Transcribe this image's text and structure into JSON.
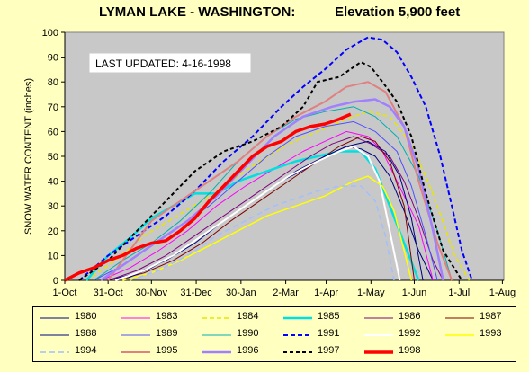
{
  "chart_data": {
    "type": "line",
    "title": "LYMAN LAKE - WASHINGTON:",
    "subtitle": "Elevation 5,900 feet",
    "annotation": "LAST UPDATED: 4-16-1998",
    "ylabel": "SNOW WATER CONTENT (inches)",
    "xlabel": "",
    "ylim": [
      0,
      100
    ],
    "yticks": [
      "0",
      "10",
      "20",
      "30",
      "40",
      "50",
      "60",
      "70",
      "80",
      "90",
      "100"
    ],
    "xlim_days": [
      0,
      304
    ],
    "xtick_positions": [
      0,
      30,
      60,
      91,
      122,
      153,
      181,
      212,
      242,
      273,
      303
    ],
    "xticks": [
      "1-Oct",
      "31-Oct",
      "30-Nov",
      "31-Dec",
      "30-Jan",
      "2-Mar",
      "1-Apr",
      "1-May",
      "1-Jun",
      "1-Jul",
      "1-Aug"
    ],
    "grid": false,
    "legend": "bottom",
    "plot_background": "#c8c8c8",
    "series": [
      {
        "name": "1980",
        "color": "#000080",
        "dash": "",
        "width": 1,
        "x": [
          30,
          50,
          70,
          90,
          110,
          130,
          150,
          170,
          180,
          195,
          205,
          215,
          225,
          235,
          245,
          255
        ],
        "y": [
          0,
          3,
          8,
          15,
          24,
          32,
          40,
          46,
          50,
          54,
          53,
          50,
          42,
          28,
          12,
          0
        ]
      },
      {
        "name": "1983",
        "color": "#ff00ff",
        "dash": "",
        "width": 1,
        "x": [
          25,
          45,
          65,
          85,
          105,
          125,
          145,
          165,
          180,
          195,
          210,
          220,
          230,
          245,
          255
        ],
        "y": [
          0,
          5,
          12,
          20,
          30,
          38,
          45,
          52,
          56,
          60,
          58,
          52,
          40,
          22,
          0
        ]
      },
      {
        "name": "1984",
        "color": "#e6e600",
        "dash": "5,3",
        "width": 1.5,
        "x": [
          15,
          35,
          55,
          75,
          95,
          115,
          135,
          155,
          175,
          195,
          210,
          225,
          240,
          255,
          270,
          280
        ],
        "y": [
          0,
          8,
          18,
          25,
          32,
          40,
          48,
          55,
          60,
          65,
          68,
          66,
          55,
          35,
          10,
          0
        ]
      },
      {
        "name": "1985",
        "color": "#00e0e0",
        "dash": "",
        "width": 2.5,
        "x": [
          15,
          30,
          45,
          60,
          75,
          90,
          105,
          120,
          140,
          160,
          175,
          190,
          205,
          215,
          225,
          235,
          245
        ],
        "y": [
          0,
          10,
          17,
          25,
          30,
          35,
          35,
          40,
          44,
          48,
          50,
          52,
          52,
          45,
          30,
          15,
          0
        ]
      },
      {
        "name": "1986",
        "color": "#800080",
        "dash": "",
        "width": 1,
        "x": [
          30,
          50,
          70,
          90,
          110,
          130,
          150,
          170,
          185,
          200,
          212,
          225,
          235,
          245,
          255,
          262
        ],
        "y": [
          0,
          4,
          10,
          18,
          26,
          34,
          42,
          50,
          55,
          58,
          55,
          50,
          40,
          25,
          8,
          0
        ]
      },
      {
        "name": "1987",
        "color": "#800000",
        "dash": "",
        "width": 1,
        "x": [
          35,
          55,
          75,
          95,
          115,
          135,
          155,
          175,
          190,
          205,
          215,
          225,
          235,
          242
        ],
        "y": [
          0,
          3,
          8,
          15,
          24,
          32,
          40,
          48,
          54,
          58,
          56,
          48,
          30,
          0
        ]
      },
      {
        "name": "1988",
        "color": "#000080",
        "dash": "",
        "width": 1,
        "x": [
          40,
          60,
          80,
          100,
          120,
          140,
          160,
          180,
          195,
          210,
          222,
          232,
          240,
          248
        ],
        "y": [
          0,
          5,
          12,
          20,
          28,
          36,
          44,
          50,
          54,
          56,
          52,
          42,
          25,
          0
        ]
      },
      {
        "name": "1989",
        "color": "#5050ff",
        "dash": "",
        "width": 1,
        "x": [
          20,
          40,
          60,
          80,
          100,
          120,
          140,
          160,
          180,
          200,
          215,
          230,
          240,
          250,
          258
        ],
        "y": [
          0,
          6,
          14,
          22,
          30,
          40,
          50,
          58,
          62,
          64,
          60,
          52,
          38,
          18,
          0
        ]
      },
      {
        "name": "1990",
        "color": "#00b0b0",
        "dash": "",
        "width": 1,
        "x": [
          20,
          40,
          60,
          80,
          100,
          120,
          140,
          160,
          180,
          200,
          215,
          230,
          245,
          258,
          268
        ],
        "y": [
          0,
          8,
          15,
          24,
          35,
          48,
          58,
          65,
          68,
          70,
          66,
          58,
          42,
          20,
          0
        ]
      },
      {
        "name": "1991",
        "color": "#0000ff",
        "dash": "5,3",
        "width": 2,
        "x": [
          10,
          30,
          50,
          70,
          90,
          110,
          130,
          150,
          165,
          180,
          195,
          210,
          220,
          230,
          240,
          250,
          260,
          268,
          275,
          282
        ],
        "y": [
          0,
          10,
          18,
          26,
          36,
          48,
          58,
          70,
          78,
          85,
          93,
          98,
          97,
          92,
          82,
          70,
          50,
          30,
          12,
          0
        ]
      },
      {
        "name": "1992",
        "color": "#ffffff",
        "dash": "",
        "width": 2,
        "x": [
          35,
          55,
          75,
          95,
          115,
          135,
          155,
          175,
          190,
          200,
          210,
          218,
          225,
          232
        ],
        "y": [
          0,
          4,
          10,
          18,
          26,
          34,
          42,
          48,
          52,
          54,
          50,
          40,
          20,
          0
        ]
      },
      {
        "name": "1993",
        "color": "#ffff00",
        "dash": "",
        "width": 1.5,
        "x": [
          40,
          60,
          80,
          100,
          120,
          140,
          160,
          180,
          200,
          210,
          220,
          228,
          235,
          240
        ],
        "y": [
          0,
          3,
          8,
          14,
          20,
          26,
          30,
          34,
          40,
          42,
          38,
          28,
          12,
          0
        ]
      },
      {
        "name": "1994",
        "color": "#a0c0ff",
        "dash": "6,4",
        "width": 1.5,
        "x": [
          45,
          65,
          85,
          105,
          125,
          145,
          160,
          175,
          190,
          205,
          215,
          222,
          228
        ],
        "y": [
          0,
          4,
          10,
          18,
          24,
          30,
          33,
          36,
          38,
          38,
          32,
          18,
          0
        ]
      },
      {
        "name": "1995",
        "color": "#e08080",
        "dash": "",
        "width": 2,
        "x": [
          30,
          45,
          60,
          75,
          90,
          105,
          120,
          140,
          160,
          180,
          195,
          210,
          222,
          235,
          245,
          258,
          268
        ],
        "y": [
          0,
          12,
          24,
          30,
          36,
          42,
          48,
          58,
          66,
          72,
          78,
          80,
          76,
          62,
          40,
          15,
          0
        ]
      },
      {
        "name": "1996",
        "color": "#a080ff",
        "dash": "",
        "width": 2.5,
        "x": [
          25,
          45,
          65,
          85,
          105,
          125,
          145,
          165,
          185,
          200,
          215,
          225,
          235,
          245,
          255,
          262
        ],
        "y": [
          0,
          8,
          16,
          24,
          34,
          46,
          58,
          66,
          70,
          72,
          73,
          70,
          62,
          45,
          20,
          0
        ]
      },
      {
        "name": "1997",
        "color": "#000000",
        "dash": "4,3",
        "width": 2,
        "x": [
          10,
          30,
          50,
          70,
          90,
          110,
          130,
          150,
          165,
          175,
          190,
          205,
          212,
          220,
          230,
          240,
          250,
          262,
          275
        ],
        "y": [
          0,
          8,
          20,
          32,
          44,
          52,
          56,
          62,
          70,
          80,
          82,
          88,
          86,
          80,
          72,
          58,
          35,
          12,
          0
        ]
      },
      {
        "name": "1998",
        "color": "#ff0000",
        "dash": "",
        "width": 3.5,
        "x": [
          0,
          10,
          20,
          30,
          40,
          50,
          60,
          70,
          80,
          90,
          100,
          110,
          120,
          130,
          140,
          150,
          160,
          170,
          180,
          190,
          198
        ],
        "y": [
          0,
          3,
          5,
          8,
          10,
          13,
          15,
          16,
          20,
          25,
          32,
          38,
          44,
          50,
          54,
          56,
          60,
          62,
          63,
          65,
          67
        ]
      }
    ]
  }
}
